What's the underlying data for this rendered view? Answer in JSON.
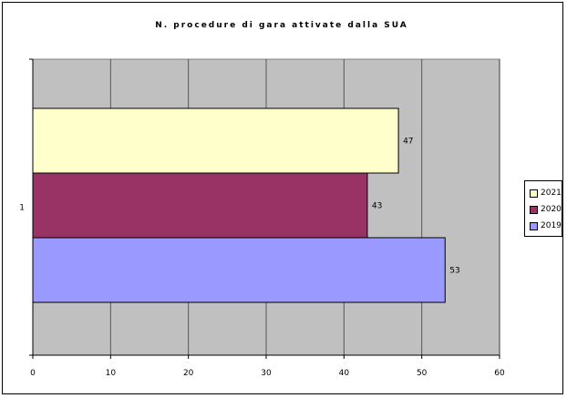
{
  "chart_data": {
    "type": "bar",
    "orientation": "horizontal",
    "title": "N. procedure di gara attivate dalla SUA",
    "categories": [
      "1"
    ],
    "series": [
      {
        "name": "2019",
        "values": [
          53
        ],
        "color": "#9999FF"
      },
      {
        "name": "2020",
        "values": [
          43
        ],
        "color": "#993366"
      },
      {
        "name": "2021",
        "values": [
          47
        ],
        "color": "#FFFFCC"
      }
    ],
    "xlim": [
      0,
      60
    ],
    "xticks": [
      0,
      10,
      20,
      30,
      40,
      50,
      60
    ],
    "grid": true,
    "plot_background": "#C0C0C0",
    "legend_position": "right",
    "legend_order": [
      "2021",
      "2020",
      "2019"
    ]
  }
}
